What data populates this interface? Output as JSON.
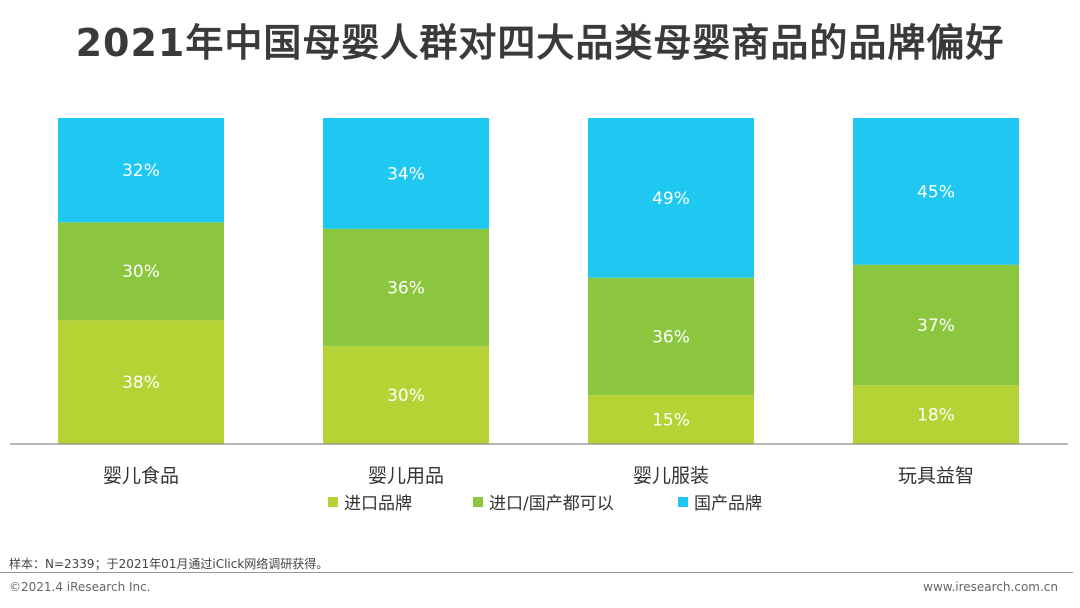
{
  "header": {
    "title": "2021年中国母婴人群对四大品类母婴商品的品牌偏好"
  },
  "chart_data": {
    "type": "bar",
    "stacked": true,
    "percent_stacked": true,
    "title": "2021年中国母婴人群对四大品类母婴商品的品牌偏好",
    "categories": [
      "婴儿食品",
      "婴儿用品",
      "婴儿服装",
      "玩具益智"
    ],
    "series": [
      {
        "name": "进口品牌",
        "values": [
          38,
          30,
          15,
          18
        ],
        "color": "#b5d334",
        "labels": [
          "38%",
          "30%",
          "15%",
          "18%"
        ]
      },
      {
        "name": "进口/国产都可以",
        "values": [
          30,
          36,
          36,
          37
        ],
        "color": "#8cc63f",
        "labels": [
          "30%",
          "36%",
          "36%",
          "37%"
        ]
      },
      {
        "name": "国产品牌",
        "values": [
          32,
          34,
          49,
          45
        ],
        "color": "#1fc8f0",
        "labels": [
          "32%",
          "34%",
          "49%",
          "45%"
        ]
      }
    ],
    "ylim": [
      0,
      100
    ],
    "grid": false,
    "legend_position": "bottom"
  },
  "footer": {
    "note": "样本：N=2339；于2021年01月通过iClick网络调研获得。",
    "copyright": "©2021.4 iResearch Inc.",
    "website": "www.iresearch.com.cn"
  }
}
